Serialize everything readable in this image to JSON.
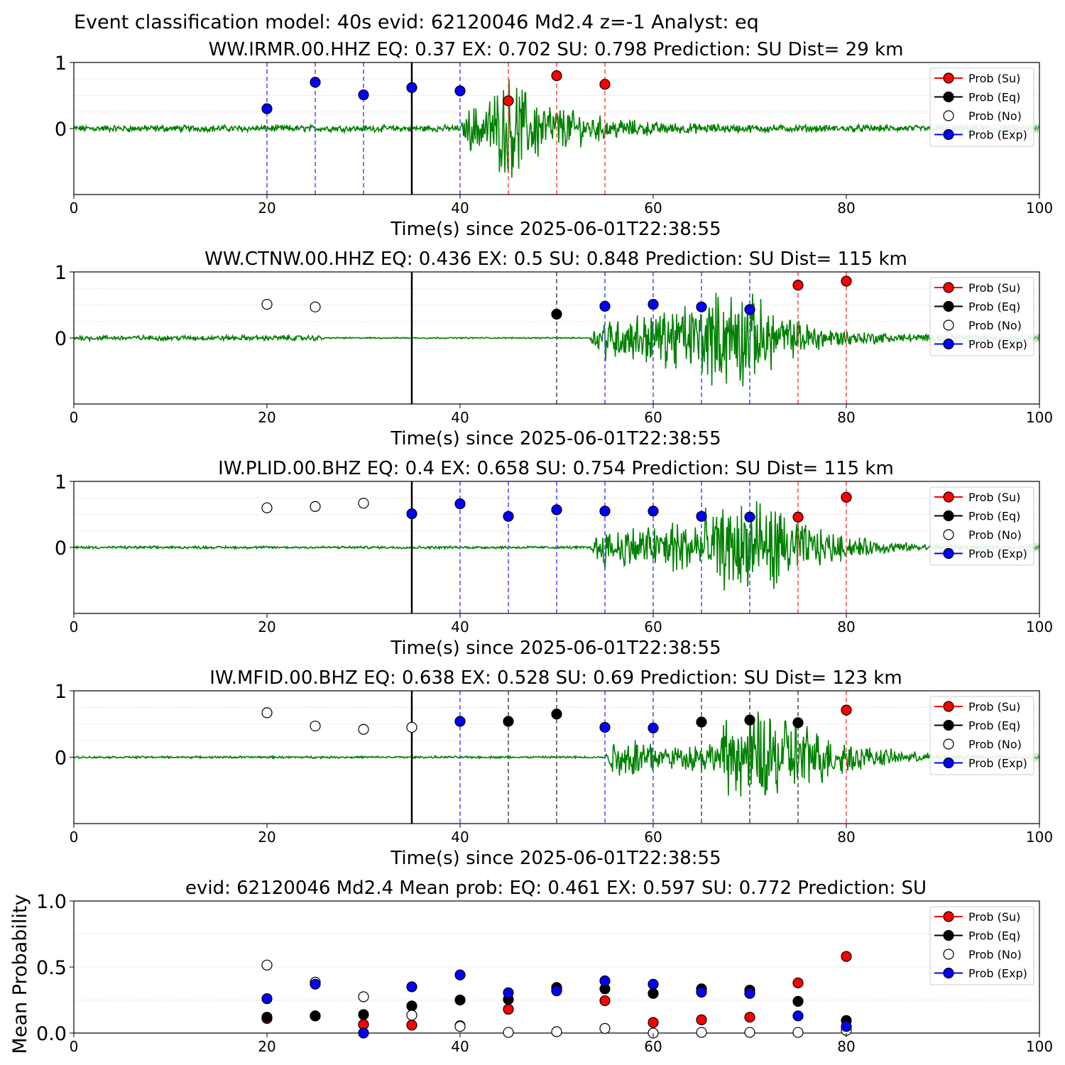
{
  "suptitle": "Event classification model: 40s evid: 62120046 Md2.4 z=-1 Analyst: eq",
  "legend_labels": [
    "Prob (Su)",
    "Prob (Eq)",
    "Prob (No)",
    "Prob (Exp)"
  ],
  "colors": {
    "su": "#ff0000",
    "eq": "#000000",
    "no": "#ffffff",
    "exp": "#0000ff",
    "trace": "#008000",
    "trace_faint": "#b6d9b6",
    "line_exp": "#5555ff",
    "line_su": "#ff5555",
    "line_eq": "#555555"
  },
  "chart_data": [
    {
      "type": "scatter",
      "title": "WW.IRMR.00.HHZ   EQ: 0.37  EX: 0.702  SU: 0.798   Prediction: SU    Dist= 29 km",
      "xlabel": "Time(s) since 2025-06-01T22:38:55",
      "ylabel": "",
      "xlim": [
        0,
        100
      ],
      "ylim": [
        -1,
        1
      ],
      "xticks": [
        "0",
        "20",
        "40",
        "60",
        "80",
        "100"
      ],
      "yticks": [
        "0",
        "1"
      ],
      "legend": "top-right",
      "reference_line": 35,
      "points": [
        {
          "x": 20,
          "y": 0.3,
          "class": "exp"
        },
        {
          "x": 25,
          "y": 0.7,
          "class": "exp"
        },
        {
          "x": 30,
          "y": 0.51,
          "class": "exp"
        },
        {
          "x": 35,
          "y": 0.62,
          "class": "exp"
        },
        {
          "x": 40,
          "y": 0.57,
          "class": "exp"
        },
        {
          "x": 45,
          "y": 0.42,
          "class": "su"
        },
        {
          "x": 50,
          "y": 0.8,
          "class": "su"
        },
        {
          "x": 55,
          "y": 0.67,
          "class": "su"
        }
      ],
      "waveform": {
        "onset": 40,
        "peak": 45,
        "decay_end": 62,
        "noise": 0.04,
        "peak_amp": 0.95,
        "clip_top": true
      }
    },
    {
      "type": "scatter",
      "title": "WW.CTNW.00.HHZ   EQ: 0.436  EX: 0.5  SU: 0.848   Prediction: SU    Dist= 115 km",
      "xlabel": "Time(s) since 2025-06-01T22:38:55",
      "ylabel": "",
      "xlim": [
        0,
        100
      ],
      "ylim": [
        -1,
        1
      ],
      "xticks": [
        "0",
        "20",
        "40",
        "60",
        "80",
        "100"
      ],
      "yticks": [
        "0",
        "1"
      ],
      "legend": "top-right",
      "reference_line": 35,
      "points": [
        {
          "x": 20,
          "y": 0.51,
          "class": "no"
        },
        {
          "x": 25,
          "y": 0.47,
          "class": "no"
        },
        {
          "x": 50,
          "y": 0.36,
          "class": "eq"
        },
        {
          "x": 55,
          "y": 0.48,
          "class": "exp"
        },
        {
          "x": 60,
          "y": 0.51,
          "class": "exp"
        },
        {
          "x": 65,
          "y": 0.47,
          "class": "exp"
        },
        {
          "x": 70,
          "y": 0.43,
          "class": "exp"
        },
        {
          "x": 75,
          "y": 0.8,
          "class": "su"
        },
        {
          "x": 80,
          "y": 0.86,
          "class": "su"
        }
      ],
      "waveform": {
        "onset": 53.5,
        "peak": 69,
        "decay_end": 84,
        "noise": 0.03,
        "peak_amp": 1.0,
        "pre_noise_end": 26
      }
    },
    {
      "type": "scatter",
      "title": "IW.PLID.00.BHZ   EQ: 0.4  EX: 0.658  SU: 0.754   Prediction: SU    Dist= 115 km",
      "xlabel": "Time(s) since 2025-06-01T22:38:55",
      "ylabel": "",
      "xlim": [
        0,
        100
      ],
      "ylim": [
        -1,
        1
      ],
      "xticks": [
        "0",
        "20",
        "40",
        "60",
        "80",
        "100"
      ],
      "yticks": [
        "0",
        "1"
      ],
      "legend": "top-right",
      "reference_line": 35,
      "points": [
        {
          "x": 20,
          "y": 0.6,
          "class": "no"
        },
        {
          "x": 25,
          "y": 0.62,
          "class": "no"
        },
        {
          "x": 30,
          "y": 0.67,
          "class": "no"
        },
        {
          "x": 35,
          "y": 0.51,
          "class": "exp"
        },
        {
          "x": 40,
          "y": 0.66,
          "class": "exp"
        },
        {
          "x": 45,
          "y": 0.47,
          "class": "exp"
        },
        {
          "x": 50,
          "y": 0.57,
          "class": "exp"
        },
        {
          "x": 55,
          "y": 0.55,
          "class": "exp"
        },
        {
          "x": 60,
          "y": 0.55,
          "class": "exp"
        },
        {
          "x": 65,
          "y": 0.47,
          "class": "exp"
        },
        {
          "x": 70,
          "y": 0.46,
          "class": "exp"
        },
        {
          "x": 75,
          "y": 0.46,
          "class": "su"
        },
        {
          "x": 80,
          "y": 0.76,
          "class": "su"
        }
      ],
      "waveform": {
        "onset": 53.5,
        "peak": 71,
        "decay_end": 88,
        "noise": 0.015,
        "peak_amp": 1.0
      }
    },
    {
      "type": "scatter",
      "title": "IW.MFID.00.BHZ   EQ: 0.638  EX: 0.528  SU: 0.69   Prediction: SU    Dist= 123 km",
      "xlabel": "Time(s) since 2025-06-01T22:38:55",
      "ylabel": "",
      "xlim": [
        0,
        100
      ],
      "ylim": [
        -1,
        1
      ],
      "xticks": [
        "0",
        "20",
        "40",
        "60",
        "80",
        "100"
      ],
      "yticks": [
        "0",
        "1"
      ],
      "legend": "top-right",
      "reference_line": 35,
      "points": [
        {
          "x": 20,
          "y": 0.67,
          "class": "no"
        },
        {
          "x": 25,
          "y": 0.47,
          "class": "no"
        },
        {
          "x": 30,
          "y": 0.42,
          "class": "no"
        },
        {
          "x": 35,
          "y": 0.45,
          "class": "no"
        },
        {
          "x": 40,
          "y": 0.54,
          "class": "exp"
        },
        {
          "x": 45,
          "y": 0.54,
          "class": "eq"
        },
        {
          "x": 50,
          "y": 0.65,
          "class": "eq"
        },
        {
          "x": 55,
          "y": 0.45,
          "class": "exp"
        },
        {
          "x": 60,
          "y": 0.44,
          "class": "exp"
        },
        {
          "x": 65,
          "y": 0.53,
          "class": "eq"
        },
        {
          "x": 70,
          "y": 0.56,
          "class": "eq"
        },
        {
          "x": 75,
          "y": 0.52,
          "class": "eq"
        },
        {
          "x": 80,
          "y": 0.71,
          "class": "su"
        }
      ],
      "waveform": {
        "onset": 55,
        "peak": 73,
        "decay_end": 90,
        "noise": 0.012,
        "peak_amp": 1.0,
        "quiet_mid": true
      }
    },
    {
      "type": "scatter",
      "title": "evid: 62120046  Md2.4   Mean prob:   EQ: 0.461  EX: 0.597  SU: 0.772   Prediction: SU",
      "xlabel": "",
      "ylabel": "Mean Probability",
      "xlim": [
        0,
        100
      ],
      "ylim": [
        0,
        1
      ],
      "xticks": [
        "0",
        "20",
        "40",
        "60",
        "80",
        "100"
      ],
      "yticks": [
        "0.0",
        "0.5",
        "1.0"
      ],
      "legend": "top-right",
      "series": [
        {
          "name": "Prob (Su)",
          "class": "su",
          "x": [
            20,
            25,
            30,
            35,
            40,
            45,
            50,
            55,
            60,
            65,
            70,
            75,
            80
          ],
          "values": [
            0.11,
            0.13,
            0.065,
            0.06,
            0.055,
            0.18,
            0.33,
            0.245,
            0.08,
            0.1,
            0.12,
            0.38,
            0.58
          ]
        },
        {
          "name": "Prob (Eq)",
          "class": "eq",
          "x": [
            20,
            25,
            30,
            35,
            40,
            45,
            50,
            55,
            60,
            65,
            70,
            75,
            80
          ],
          "values": [
            0.12,
            0.13,
            0.14,
            0.205,
            0.25,
            0.255,
            0.345,
            0.335,
            0.3,
            0.335,
            0.325,
            0.24,
            0.095
          ]
        },
        {
          "name": "Prob (No)",
          "class": "no",
          "x": [
            20,
            25,
            30,
            35,
            40,
            45,
            50,
            55,
            60,
            65,
            70,
            75,
            80
          ],
          "values": [
            0.515,
            0.385,
            0.275,
            0.135,
            0.05,
            0.005,
            0.01,
            0.035,
            0.0,
            0.005,
            0.005,
            0.005,
            0.02
          ]
        },
        {
          "name": "Prob (Exp)",
          "class": "exp",
          "x": [
            20,
            25,
            30,
            35,
            40,
            45,
            50,
            55,
            60,
            65,
            70,
            75,
            80
          ],
          "values": [
            0.26,
            0.37,
            0.0,
            0.35,
            0.44,
            0.305,
            0.32,
            0.395,
            0.37,
            0.31,
            0.3,
            0.13,
            0.05
          ]
        }
      ]
    }
  ]
}
